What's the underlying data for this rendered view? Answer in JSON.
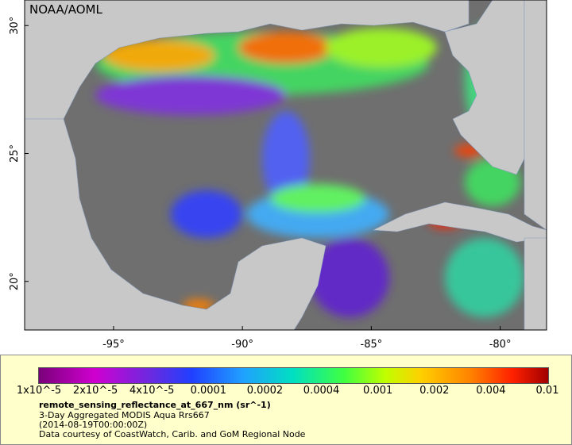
{
  "map": {
    "attribution": "NOAA/AOML",
    "xlim": [
      -98.45,
      -78.2
    ],
    "ylim": [
      18.1,
      31
    ],
    "xticks": [
      {
        "value": -95,
        "label": "-95°"
      },
      {
        "value": -90,
        "label": "-90°"
      },
      {
        "value": -85,
        "label": "-85°"
      },
      {
        "value": -80,
        "label": "-80°"
      }
    ],
    "yticks": [
      {
        "value": 30,
        "label": "30°"
      },
      {
        "value": 25,
        "label": "25°"
      },
      {
        "value": 20,
        "label": "20°"
      }
    ]
  },
  "colorbar": {
    "labels": [
      "1x10^-5",
      "2x10^-5",
      "4x10^-5",
      "0.0001",
      "0.0002",
      "0.0004",
      "0.001",
      "0.002",
      "0.004",
      "0.01"
    ],
    "variable": "remote_sensing_reflectance_at_667_nm (sr^-1)",
    "description": "3-Day Aggregated MODIS Aqua Rrs667",
    "time": "(2014-08-19T00:00:00Z)",
    "credit": "Data courtesy of CoastWatch, Carib. and GoM Regional Node"
  }
}
